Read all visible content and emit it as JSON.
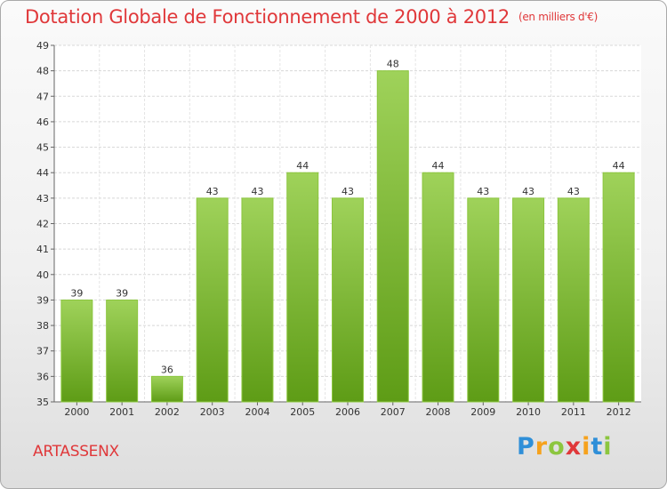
{
  "title": "Dotation Globale de Fonctionnement de 2000 à 2012",
  "unit": "(en milliers d'€)",
  "commune": "ARTASSENX",
  "logo": {
    "letters": [
      "P",
      "r",
      "o",
      "x",
      "i",
      "t",
      "i"
    ]
  },
  "colors": {
    "bar_top": "#9fd25a",
    "bar_bottom": "#5e9c16",
    "title": "#e0383a"
  },
  "chart_data": {
    "type": "bar",
    "title": "Dotation Globale de Fonctionnement de 2000 à 2012",
    "subtitle": "(en milliers d'€)",
    "categories": [
      "2000",
      "2001",
      "2002",
      "2003",
      "2004",
      "2005",
      "2006",
      "2007",
      "2008",
      "2009",
      "2010",
      "2011",
      "2012"
    ],
    "values": [
      39,
      39,
      36,
      43,
      43,
      44,
      43,
      48,
      44,
      43,
      43,
      43,
      44
    ],
    "ylim": [
      35,
      49
    ],
    "yticks": [
      35,
      36,
      37,
      38,
      39,
      40,
      41,
      42,
      43,
      44,
      45,
      46,
      47,
      48,
      49
    ],
    "grid": true,
    "legend": "none"
  }
}
